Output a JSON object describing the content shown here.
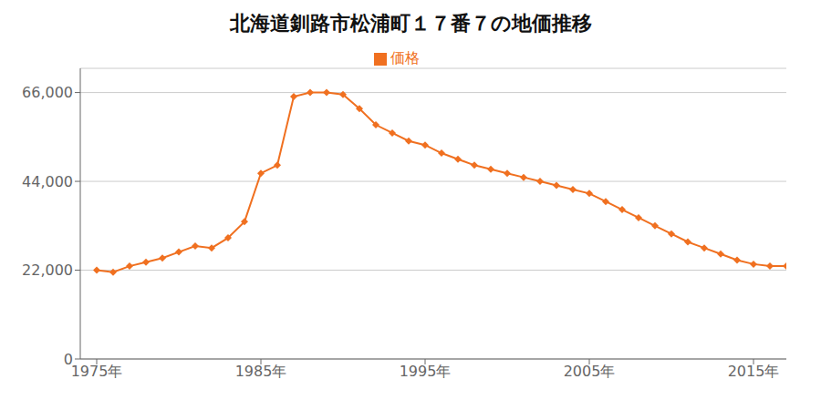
{
  "chart_data": {
    "type": "line",
    "title": "北海道釧路市松浦町１７番７の地価推移",
    "x": [
      1975,
      1976,
      1977,
      1978,
      1979,
      1980,
      1981,
      1982,
      1983,
      1984,
      1985,
      1986,
      1987,
      1988,
      1989,
      1990,
      1991,
      1992,
      1993,
      1994,
      1995,
      1996,
      1997,
      1998,
      1999,
      2000,
      2001,
      2002,
      2003,
      2004,
      2005,
      2006,
      2007,
      2008,
      2009,
      2010,
      2011,
      2012,
      2013,
      2014,
      2015,
      2016,
      2017
    ],
    "series": [
      {
        "name": "価格",
        "color": "#f07020",
        "marker": "diamond",
        "values": [
          22000,
          21500,
          23000,
          24000,
          25000,
          26500,
          28000,
          27500,
          30000,
          34000,
          46000,
          48000,
          65000,
          66000,
          66000,
          65500,
          62000,
          58000,
          56000,
          54000,
          53000,
          51000,
          49500,
          48000,
          47000,
          46000,
          45000,
          44000,
          43000,
          42000,
          41000,
          39000,
          37000,
          35000,
          33000,
          31000,
          29000,
          27500,
          26000,
          24500,
          23500,
          23000,
          23000
        ]
      }
    ],
    "xlim": [
      1974,
      2017
    ],
    "xticks": [
      {
        "value": 1975,
        "label": "1975年"
      },
      {
        "value": 1985,
        "label": "1985年"
      },
      {
        "value": 1995,
        "label": "1995年"
      },
      {
        "value": 2005,
        "label": "2005年"
      },
      {
        "value": 2015,
        "label": "2015年"
      }
    ],
    "ylim": [
      0,
      72000
    ],
    "yticks": [
      0,
      {
        "value": 22000,
        "label": "22,000"
      },
      {
        "value": 44000,
        "label": "44,000"
      },
      {
        "value": 66000,
        "label": "66,000"
      }
    ],
    "grid": true,
    "legend": "top"
  }
}
